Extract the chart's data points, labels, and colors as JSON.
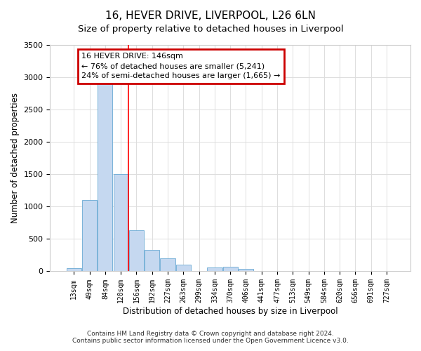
{
  "title": "16, HEVER DRIVE, LIVERPOOL, L26 6LN",
  "subtitle": "Size of property relative to detached houses in Liverpool",
  "xlabel": "Distribution of detached houses by size in Liverpool",
  "ylabel": "Number of detached properties",
  "bin_labels": [
    "13sqm",
    "49sqm",
    "84sqm",
    "120sqm",
    "156sqm",
    "192sqm",
    "227sqm",
    "263sqm",
    "299sqm",
    "334sqm",
    "370sqm",
    "406sqm",
    "441sqm",
    "477sqm",
    "513sqm",
    "549sqm",
    "584sqm",
    "620sqm",
    "656sqm",
    "691sqm",
    "727sqm"
  ],
  "bar_values": [
    50,
    1100,
    2900,
    1500,
    640,
    330,
    200,
    100,
    0,
    55,
    75,
    35,
    0,
    0,
    0,
    0,
    0,
    0,
    0,
    0,
    0
  ],
  "bar_color": "#c5d8f0",
  "bar_edge_color": "#6aaad4",
  "annotation_text": "16 HEVER DRIVE: 146sqm\n← 76% of detached houses are smaller (5,241)\n24% of semi-detached houses are larger (1,665) →",
  "annotation_box_color": "#ffffff",
  "annotation_box_edge_color": "#cc0000",
  "ylim": [
    0,
    3500
  ],
  "yticks": [
    0,
    500,
    1000,
    1500,
    2000,
    2500,
    3000,
    3500
  ],
  "grid_color": "#dddddd",
  "footer_line1": "Contains HM Land Registry data © Crown copyright and database right 2024.",
  "footer_line2": "Contains public sector information licensed under the Open Government Licence v3.0.",
  "background_color": "#ffffff",
  "plot_bg_color": "#ffffff",
  "red_line_bin": 3.5,
  "title_fontsize": 11,
  "subtitle_fontsize": 10
}
